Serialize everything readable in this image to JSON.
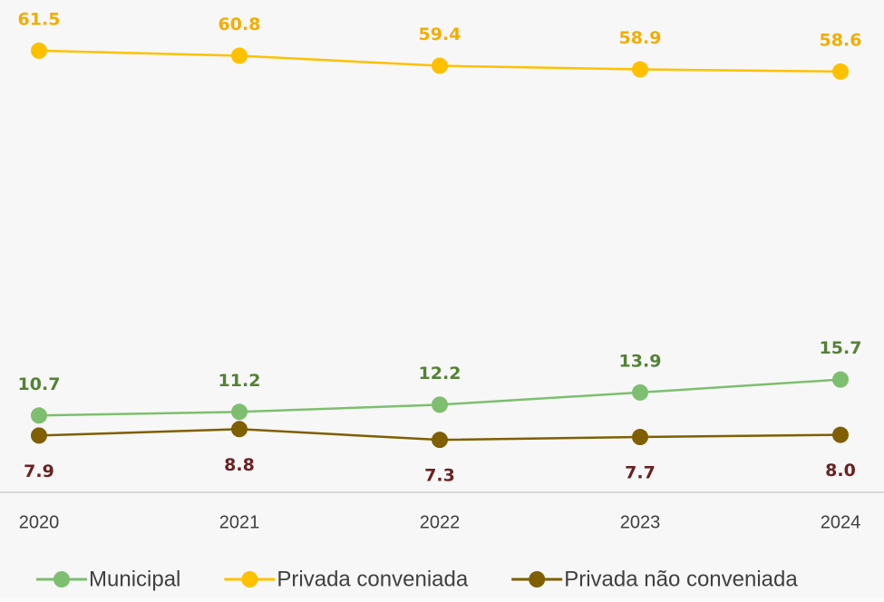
{
  "chart_data": {
    "type": "line",
    "x": [
      "2020",
      "2021",
      "2022",
      "2023",
      "2024"
    ],
    "ylim": [
      0,
      70
    ],
    "series": [
      {
        "name": "Municipal",
        "color": "#7dbf6e",
        "label_color": "#548235",
        "values": [
          10.7,
          11.2,
          12.2,
          13.9,
          15.7
        ]
      },
      {
        "name": "Privada conveniada",
        "color": "#ffc000",
        "label_color": "#f2ad00",
        "values": [
          61.5,
          60.8,
          59.4,
          58.9,
          58.6
        ]
      },
      {
        "name": "Privada não conveniada",
        "color": "#7f5f00",
        "label_color": "#6b2121",
        "values": [
          7.9,
          8.8,
          7.3,
          7.7,
          8.0
        ],
        "value_labels": [
          "7.9",
          "8.8",
          "7.3",
          "7.7",
          "8.0"
        ]
      }
    ]
  }
}
